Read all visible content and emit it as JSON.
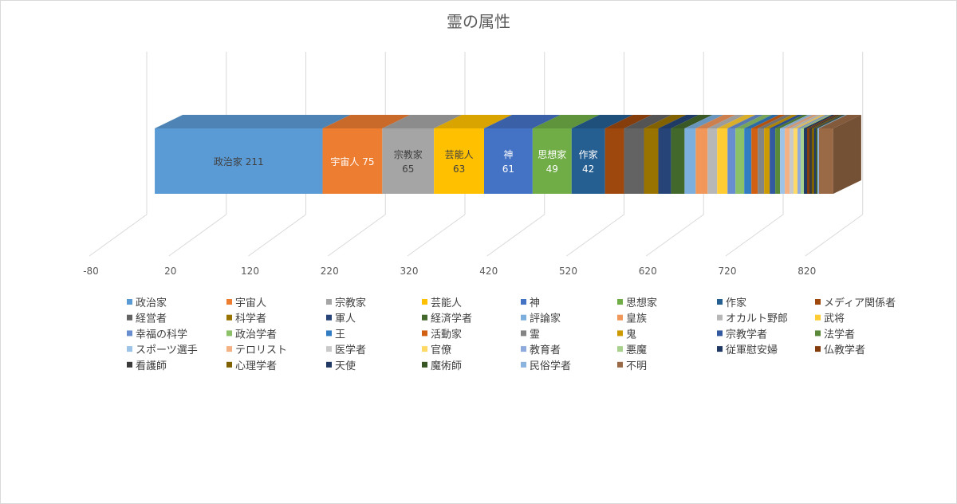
{
  "chart_data": {
    "type": "bar",
    "orientation": "horizontal-stacked-3d",
    "title": "霊の属性",
    "xlim": [
      -80,
      820
    ],
    "x_ticks": [
      -80,
      20,
      120,
      220,
      320,
      420,
      520,
      620,
      720,
      820
    ],
    "grid": true,
    "legend_position": "bottom",
    "categories": [
      ""
    ],
    "series": [
      {
        "name": "政治家",
        "value": 211,
        "color": "#5b9bd5",
        "label": "政治家 211",
        "label_color": "#404040"
      },
      {
        "name": "宇宙人",
        "value": 75,
        "color": "#ed7d31",
        "label": "宇宙人 75",
        "label_color": "#ffffff"
      },
      {
        "name": "宗教家",
        "value": 65,
        "color": "#a5a5a5",
        "label": "宗教家\n65",
        "label_color": "#404040"
      },
      {
        "name": "芸能人",
        "value": 63,
        "color": "#ffc000",
        "label": "芸能人\n63",
        "label_color": "#404040"
      },
      {
        "name": "神",
        "value": 61,
        "color": "#4472c4",
        "label": "神\n61",
        "label_color": "#ffffff"
      },
      {
        "name": "思想家",
        "value": 49,
        "color": "#70ad47",
        "label": "思想家\n49",
        "label_color": "#ffffff"
      },
      {
        "name": "作家",
        "value": 42,
        "color": "#255e91",
        "label": "作家\n42",
        "label_color": "#ffffff"
      },
      {
        "name": "メディア関係者",
        "value": 24,
        "color": "#9e480e"
      },
      {
        "name": "経営者",
        "value": 25,
        "color": "#636363"
      },
      {
        "name": "科学者",
        "value": 18,
        "color": "#997300"
      },
      {
        "name": "軍人",
        "value": 16,
        "color": "#264478"
      },
      {
        "name": "経済学者",
        "value": 17,
        "color": "#43682b"
      },
      {
        "name": "評論家",
        "value": 14,
        "color": "#7cafdd"
      },
      {
        "name": "皇族",
        "value": 15,
        "color": "#f1975a"
      },
      {
        "name": "オカルト野郎",
        "value": 12,
        "color": "#b7b7b7"
      },
      {
        "name": "武将",
        "value": 13,
        "color": "#ffcd33"
      },
      {
        "name": "幸福の科学",
        "value": 10,
        "color": "#698ed0"
      },
      {
        "name": "政治学者",
        "value": 11,
        "color": "#8cc168"
      },
      {
        "name": "王",
        "value": 9,
        "color": "#327dc2"
      },
      {
        "name": "活動家",
        "value": 8,
        "color": "#d26012"
      },
      {
        "name": "霊",
        "value": 8,
        "color": "#848484"
      },
      {
        "name": "鬼",
        "value": 7,
        "color": "#cc9a00"
      },
      {
        "name": "宗教学者",
        "value": 7,
        "color": "#335aa1"
      },
      {
        "name": "法学者",
        "value": 6,
        "color": "#5a8a39"
      },
      {
        "name": "スポーツ選手",
        "value": 6,
        "color": "#9dc3e6"
      },
      {
        "name": "テロリスト",
        "value": 6,
        "color": "#f4b183"
      },
      {
        "name": "医学者",
        "value": 5,
        "color": "#c9c9c9"
      },
      {
        "name": "官僚",
        "value": 5,
        "color": "#ffd966"
      },
      {
        "name": "教育者",
        "value": 4,
        "color": "#8faadc"
      },
      {
        "name": "悪魔",
        "value": 4,
        "color": "#a9d18e"
      },
      {
        "name": "従軍慰安婦",
        "value": 4,
        "color": "#1f3864"
      },
      {
        "name": "仏教学者",
        "value": 3,
        "color": "#843c0c"
      },
      {
        "name": "看護師",
        "value": 3,
        "color": "#3a3a3a"
      },
      {
        "name": "心理学者",
        "value": 3,
        "color": "#7f6000"
      },
      {
        "name": "天使",
        "value": 2,
        "color": "#203864"
      },
      {
        "name": "魔術師",
        "value": 2,
        "color": "#375623"
      },
      {
        "name": "民俗学者",
        "value": 2,
        "color": "#8ab3de"
      },
      {
        "name": "不明",
        "value": 18,
        "color": "#9a6a47"
      }
    ]
  }
}
